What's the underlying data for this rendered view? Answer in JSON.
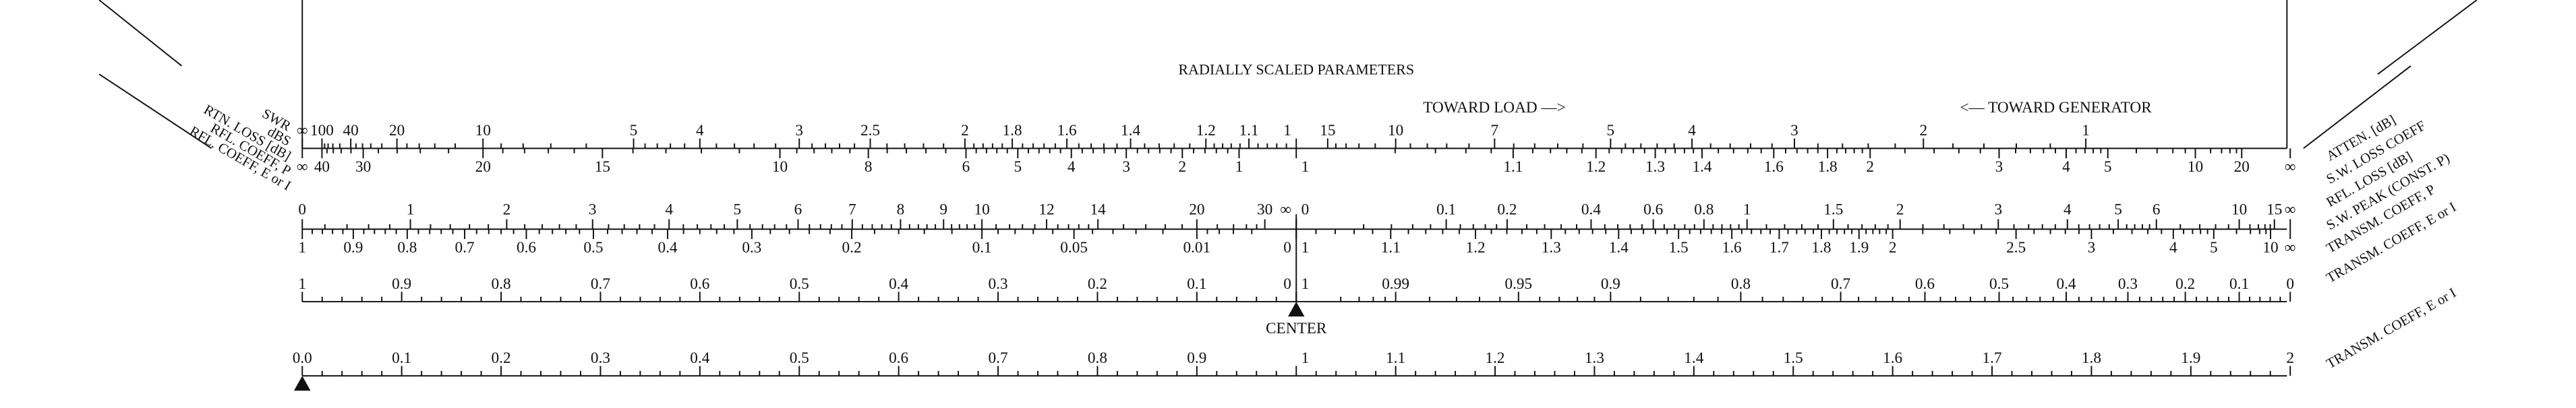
{
  "title": "RADIALLY SCALED PARAMETERS",
  "toward_load": "TOWARD LOAD —>",
  "toward_generator": "<— TOWARD GENERATOR",
  "center": "CENTER",
  "rows": [
    {
      "left": {
        "name": "SWR",
        "labels": [
          "∞",
          "100",
          "40",
          "20",
          "10",
          "5",
          "4",
          "3",
          "2.5",
          "2",
          "1.8",
          "1.6",
          "1.4",
          "1.2",
          "1.1",
          "1"
        ]
      },
      "right": {
        "name": "ATTEN. [dB]",
        "labels": [
          "15",
          "10",
          "7",
          "5",
          "4",
          "3",
          "2",
          "1"
        ]
      }
    },
    {
      "left": {
        "name": "dBS",
        "labels": [
          "∞",
          "40",
          "30",
          "20",
          "15",
          "10",
          "8",
          "6",
          "5",
          "4",
          "3",
          "2",
          "1"
        ]
      },
      "right": {
        "name": "S.W. LOSS COEFF",
        "labels": [
          "1",
          "1.1",
          "1.2",
          "1.3",
          "1.4",
          "1.6",
          "1.8",
          "2",
          "3",
          "4",
          "5",
          "10",
          "20",
          "∞"
        ]
      }
    },
    {
      "left": {
        "name": "RTN. LOSS [dB]",
        "labels": [
          "0",
          "1",
          "2",
          "3",
          "4",
          "5",
          "6",
          "7",
          "8",
          "9",
          "10",
          "12",
          "14",
          "20",
          "30",
          "∞"
        ]
      },
      "right": {
        "name": "RFL. LOSS [dB]",
        "labels": [
          "0",
          "0.1",
          "0.2",
          "0.4",
          "0.6",
          "0.8",
          "1",
          "1.5",
          "2",
          "3",
          "4",
          "5",
          "6",
          "10",
          "15",
          "∞"
        ]
      }
    },
    {
      "left": {
        "name": "RFL. COEFF, P",
        "labels": [
          "1",
          "0.9",
          "0.8",
          "0.7",
          "0.6",
          "0.5",
          "0.4",
          "0.3",
          "0.2",
          "0.1",
          "0.05",
          "0.01",
          "0"
        ]
      },
      "right": {
        "name": "S.W. PEAK (CONST. P)",
        "labels": [
          "1",
          "1.1",
          "1.2",
          "1.3",
          "1.4",
          "1.5",
          "1.6",
          "1.7",
          "1.8",
          "1.9",
          "2",
          "2.5",
          "3",
          "4",
          "5",
          "10",
          "∞"
        ]
      }
    },
    {
      "left": {
        "name": "RFL. COEFF, E or I",
        "labels": [
          "1",
          "0.9",
          "0.8",
          "0.7",
          "0.6",
          "0.5",
          "0.4",
          "0.3",
          "0.2",
          "0.1",
          "0"
        ]
      },
      "right": {
        "name": "TRANSM. COEFF, P",
        "labels": [
          "1",
          "0.99",
          "0.95",
          "0.9",
          "0.8",
          "0.7",
          "0.6",
          "0.5",
          "0.4",
          "0.3",
          "0.2",
          "0.1",
          "0"
        ]
      }
    }
  ],
  "right_extra_label": "TRANSM. COEFF, E or I",
  "bottom": {
    "name": "TRANSM. COEFF, E or I",
    "labels": [
      "0.0",
      "0.1",
      "0.2",
      "0.3",
      "0.4",
      "0.5",
      "0.6",
      "0.7",
      "0.8",
      "0.9",
      "1",
      "1.1",
      "1.2",
      "1.3",
      "1.4",
      "1.5",
      "1.6",
      "1.7",
      "1.8",
      "1.9",
      "2"
    ]
  }
}
